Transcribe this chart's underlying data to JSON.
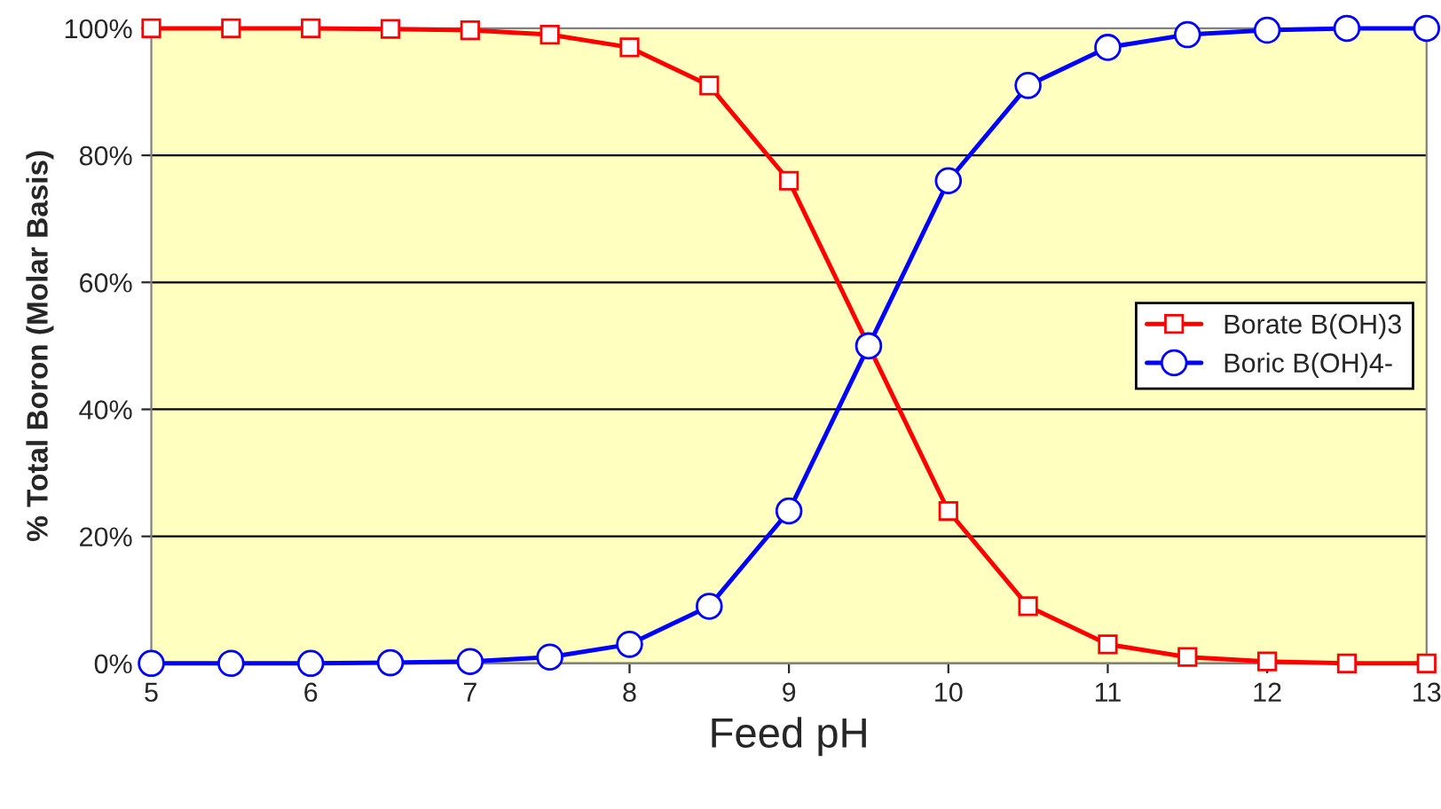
{
  "chart_data": {
    "type": "line",
    "xlabel": "Feed pH",
    "ylabel": "% Total Boron (Molar Basis)",
    "x": [
      5,
      5.5,
      6,
      6.5,
      7,
      7.5,
      8,
      8.5,
      9,
      9.5,
      10,
      10.5,
      11,
      11.5,
      12,
      12.5,
      13
    ],
    "series": [
      {
        "name": "Borate B(OH)3",
        "color": "#ff0000",
        "marker": "square",
        "values": [
          100,
          100,
          100,
          99.9,
          99.7,
          99,
          97,
          91,
          76,
          50,
          24,
          9,
          3,
          1,
          0.3,
          0,
          0
        ]
      },
      {
        "name": "Boric B(OH)4-",
        "color": "#0000ff",
        "marker": "circle",
        "values": [
          0,
          0,
          0,
          0.1,
          0.3,
          1,
          3,
          9,
          24,
          50,
          76,
          91,
          97,
          99,
          99.7,
          100,
          100
        ]
      }
    ],
    "xlim": [
      5,
      13
    ],
    "xticks": [
      5,
      6,
      7,
      8,
      9,
      10,
      11,
      12,
      13
    ],
    "ylim": [
      0,
      100
    ],
    "yticks": [
      {
        "value": 0,
        "label": "0%"
      },
      {
        "value": 20,
        "label": "20%"
      },
      {
        "value": 40,
        "label": "40%"
      },
      {
        "value": 60,
        "label": "60%"
      },
      {
        "value": 80,
        "label": "80%"
      },
      {
        "value": 100,
        "label": "100%"
      }
    ],
    "grid": "y",
    "legend": "center right",
    "line_style": "solid"
  }
}
